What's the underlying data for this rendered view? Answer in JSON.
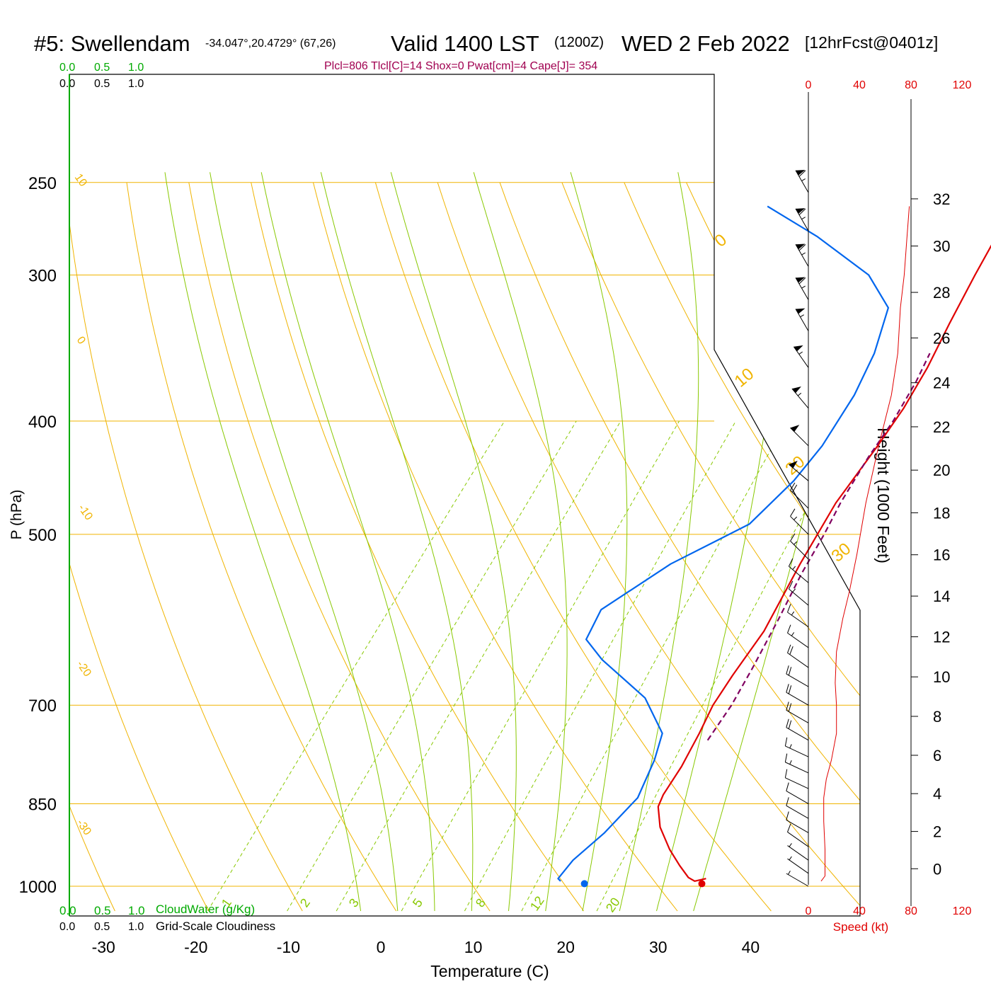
{
  "header": {
    "station": "#5: Swellendam",
    "coords": "-34.047°,20.4729° (67,26)",
    "valid": "Valid 1400 LST",
    "zulu": "(1200Z)",
    "date": "WED 2 Feb 2022",
    "forecast": "[12hrFcst@0401z]",
    "params": "Plcl=806 Tlcl[C]=14 Shox=0 Pwat[cm]=4 Cape[J]= 354"
  },
  "colors": {
    "isobar": "#f0b400",
    "dry_adiabat": "#f0b400",
    "moist_adiabat": "#88c800",
    "mixing_ratio": "#88c800",
    "temperature": "#e00000",
    "dewpoint": "#0066ee",
    "parcel": "#800060",
    "wind_profile": "#e00000",
    "cloud_scale": "#00aa00",
    "params_text": "#a00050"
  },
  "cloud_scale": {
    "top_green": [
      "0.0",
      "0.5",
      "1.0"
    ],
    "top_black": [
      "0.0",
      "0.5",
      "1.0"
    ],
    "bottom_green": [
      "0.0",
      "0.5",
      "1.0"
    ],
    "bottom_black": [
      "0.0",
      "0.5",
      "1.0"
    ],
    "cloudwater_label": "CloudWater (g/Kg)",
    "cloudiness_label": "Grid-Scale Cloudiness"
  },
  "wind_speed_axis": {
    "ticks": [
      "0",
      "40",
      "80",
      "120"
    ],
    "label": "Speed (kt)"
  },
  "chart_data": {
    "type": "line",
    "diagram": "skew-T log-p",
    "x_axis": {
      "label": "Temperature (C)",
      "ticks": [
        -30,
        -20,
        -10,
        0,
        10,
        20,
        30,
        40
      ]
    },
    "y_axis": {
      "label": "P (hPa)",
      "scale": "log",
      "ticks": [
        250,
        300,
        400,
        500,
        700,
        850,
        1000
      ]
    },
    "height_axis": {
      "label": "Height (1000 Feet)",
      "ticks": [
        0,
        2,
        4,
        6,
        8,
        10,
        12,
        14,
        16,
        18,
        20,
        22,
        24,
        26,
        28,
        30,
        32
      ]
    },
    "dry_adiabat_labels": [
      "10",
      "0",
      "-10",
      "-20",
      "-30"
    ],
    "moist_adiabat_labels": [
      "0",
      "10",
      "20",
      "30"
    ],
    "mixing_ratio_labels": [
      "1",
      "2",
      "3",
      "5",
      "8",
      "12",
      "20"
    ],
    "series": [
      {
        "name": "temperature",
        "points": [
          [
            34.5,
            985
          ],
          [
            33.5,
            990
          ],
          [
            32.5,
            983
          ],
          [
            30.5,
            960
          ],
          [
            28,
            930
          ],
          [
            25,
            890
          ],
          [
            23,
            855
          ],
          [
            22.5,
            835
          ],
          [
            22,
            790
          ],
          [
            21,
            740
          ],
          [
            20,
            700
          ],
          [
            19.5,
            660
          ],
          [
            19,
            605
          ],
          [
            17,
            530
          ],
          [
            15.5,
            470
          ],
          [
            15,
            420
          ],
          [
            14.5,
            390
          ],
          [
            13.5,
            360
          ],
          [
            12,
            330
          ],
          [
            10.5,
            300
          ],
          [
            9,
            270
          ],
          [
            8,
            262
          ]
        ]
      },
      {
        "name": "dewpoint",
        "points": [
          [
            19,
            990
          ],
          [
            18.5,
            985
          ],
          [
            18.5,
            950
          ],
          [
            19.5,
            900
          ],
          [
            20,
            840
          ],
          [
            18.5,
            780
          ],
          [
            17,
            740
          ],
          [
            12,
            690
          ],
          [
            4,
            640
          ],
          [
            0.5,
            615
          ],
          [
            -0.5,
            580
          ],
          [
            3,
            530
          ],
          [
            8,
            490
          ],
          [
            9,
            450
          ],
          [
            9,
            420
          ],
          [
            8,
            380
          ],
          [
            6.5,
            350
          ],
          [
            4,
            320
          ],
          [
            -1,
            300
          ],
          [
            -10,
            278
          ],
          [
            -18,
            262
          ]
        ]
      },
      {
        "name": "parcel",
        "points": [
          [
            22.5,
            750
          ],
          [
            22,
            700
          ],
          [
            21,
            650
          ],
          [
            19.5,
            590
          ],
          [
            18,
            540
          ],
          [
            17,
            500
          ],
          [
            16,
            470
          ],
          [
            15,
            430
          ],
          [
            14.5,
            400
          ],
          [
            13.5,
            370
          ],
          [
            12.5,
            350
          ]
        ]
      }
    ],
    "surface_points": [
      {
        "name": "surface-dewpoint",
        "t": 21.8,
        "p": 995
      },
      {
        "name": "surface-temperature",
        "t": 34.5,
        "p": 995
      }
    ],
    "wind_barbs": [
      {
        "p": 1000,
        "dir": 300,
        "spd": 5
      },
      {
        "p": 975,
        "dir": 305,
        "spd": 5
      },
      {
        "p": 950,
        "dir": 305,
        "spd": 5
      },
      {
        "p": 925,
        "dir": 305,
        "spd": 10
      },
      {
        "p": 900,
        "dir": 300,
        "spd": 10
      },
      {
        "p": 875,
        "dir": 300,
        "spd": 10
      },
      {
        "p": 850,
        "dir": 300,
        "spd": 10
      },
      {
        "p": 825,
        "dir": 295,
        "spd": 10
      },
      {
        "p": 800,
        "dir": 295,
        "spd": 15
      },
      {
        "p": 775,
        "dir": 295,
        "spd": 15
      },
      {
        "p": 750,
        "dir": 300,
        "spd": 20
      },
      {
        "p": 725,
        "dir": 300,
        "spd": 20
      },
      {
        "p": 700,
        "dir": 300,
        "spd": 20
      },
      {
        "p": 675,
        "dir": 300,
        "spd": 20
      },
      {
        "p": 650,
        "dir": 305,
        "spd": 20
      },
      {
        "p": 625,
        "dir": 305,
        "spd": 15
      },
      {
        "p": 600,
        "dir": 305,
        "spd": 15
      },
      {
        "p": 575,
        "dir": 310,
        "spd": 15
      },
      {
        "p": 550,
        "dir": 310,
        "spd": 15
      },
      {
        "p": 525,
        "dir": 315,
        "spd": 15
      },
      {
        "p": 500,
        "dir": 315,
        "spd": 15
      },
      {
        "p": 475,
        "dir": 315,
        "spd": 20
      },
      {
        "p": 450,
        "dir": 310,
        "spd": 50
      },
      {
        "p": 420,
        "dir": 315,
        "spd": 50
      },
      {
        "p": 390,
        "dir": 320,
        "spd": 55
      },
      {
        "p": 360,
        "dir": 325,
        "spd": 55
      },
      {
        "p": 335,
        "dir": 330,
        "spd": 55
      },
      {
        "p": 315,
        "dir": 330,
        "spd": 65
      },
      {
        "p": 295,
        "dir": 330,
        "spd": 65
      },
      {
        "p": 275,
        "dir": 330,
        "spd": 65
      },
      {
        "p": 255,
        "dir": 330,
        "spd": 65
      }
    ],
    "wind_speed_profile": [
      [
        10,
        990
      ],
      [
        13,
        980
      ],
      [
        13,
        930
      ],
      [
        12,
        880
      ],
      [
        12,
        840
      ],
      [
        14,
        810
      ],
      [
        18,
        780
      ],
      [
        22,
        740
      ],
      [
        22,
        700
      ],
      [
        21,
        670
      ],
      [
        22,
        630
      ],
      [
        27,
        590
      ],
      [
        32,
        560
      ],
      [
        38,
        520
      ],
      [
        45,
        470
      ],
      [
        55,
        420
      ],
      [
        65,
        380
      ],
      [
        70,
        350
      ],
      [
        72,
        320
      ],
      [
        75,
        300
      ],
      [
        77,
        280
      ],
      [
        79,
        262
      ]
    ]
  }
}
